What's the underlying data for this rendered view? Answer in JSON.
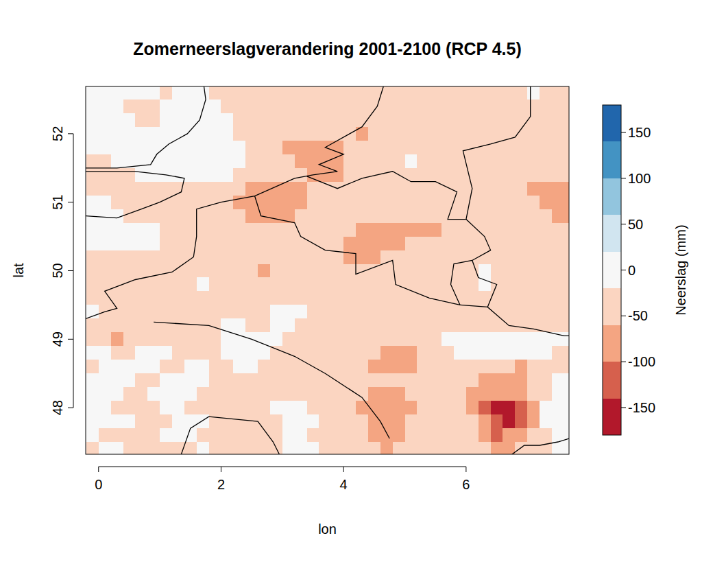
{
  "chart_data": {
    "type": "heatmap",
    "title": "Zomerneerslagverandering 2001-2100 (RCP 4.5)",
    "xlabel": "lon",
    "ylabel": "lat",
    "xlim": [
      -0.21,
      7.68
    ],
    "ylim": [
      47.32,
      52.69
    ],
    "xticks": [
      0,
      2,
      4,
      6
    ],
    "yticks": [
      48,
      49,
      50,
      51,
      52
    ],
    "grid": false,
    "x": [
      -0.1,
      0.1,
      0.3,
      0.5,
      0.7,
      0.9,
      1.1,
      1.3,
      1.5,
      1.7,
      1.9,
      2.1,
      2.3,
      2.5,
      2.7,
      2.9,
      3.1,
      3.3,
      3.5,
      3.7,
      3.9,
      4.1,
      4.3,
      4.5,
      4.7,
      4.9,
      5.1,
      5.3,
      5.5,
      5.7,
      5.9,
      6.1,
      6.3,
      6.5,
      6.7,
      6.9,
      7.1,
      7.3,
      7.5,
      7.7
    ],
    "y": [
      52.6,
      52.4,
      52.2,
      52,
      51.8,
      51.6,
      51.4,
      51.2,
      51,
      50.8,
      50.6,
      50.4,
      50.2,
      50,
      49.8,
      49.6,
      49.4,
      49.2,
      49,
      48.8,
      48.6,
      48.4,
      48.2,
      48,
      47.8,
      47.6,
      47.4
    ],
    "z": [
      [
        0,
        0,
        0,
        0,
        0,
        0,
        -40,
        0,
        0,
        0,
        -40,
        -40,
        -40,
        -40,
        -40,
        -40,
        -40,
        -40,
        -40,
        -40,
        -40,
        -40,
        -40,
        -40,
        -40,
        -40,
        -40,
        -40,
        -40,
        -40,
        -40,
        -40,
        -40,
        -40,
        -40,
        -40,
        0,
        -40,
        -40,
        -40
      ],
      [
        0,
        0,
        0,
        -40,
        -40,
        -40,
        0,
        0,
        0,
        0,
        0,
        -40,
        -40,
        -40,
        -40,
        -40,
        -40,
        -40,
        -40,
        -40,
        -40,
        -40,
        -40,
        -40,
        -40,
        -40,
        -40,
        -40,
        -40,
        -40,
        -40,
        -40,
        -40,
        -40,
        -40,
        -40,
        -40,
        -40,
        -40,
        -40
      ],
      [
        0,
        0,
        0,
        0,
        -40,
        -40,
        0,
        0,
        0,
        0,
        0,
        0,
        -40,
        -40,
        -40,
        -40,
        -40,
        -40,
        -40,
        -40,
        -40,
        -40,
        -40,
        -40,
        -40,
        -40,
        -40,
        -40,
        -40,
        -40,
        -40,
        -40,
        -40,
        -40,
        -40,
        -40,
        -40,
        -40,
        -40,
        -40
      ],
      [
        0,
        0,
        0,
        0,
        0,
        0,
        0,
        0,
        0,
        0,
        0,
        0,
        -40,
        -40,
        -40,
        -40,
        -40,
        -40,
        -40,
        -40,
        -40,
        -40,
        -80,
        -40,
        -40,
        -40,
        -40,
        -40,
        -40,
        -40,
        -40,
        -40,
        -40,
        -40,
        -40,
        -40,
        -40,
        -40,
        -40,
        -40
      ],
      [
        0,
        0,
        0,
        0,
        0,
        0,
        0,
        0,
        0,
        0,
        0,
        0,
        0,
        -40,
        -40,
        -40,
        -80,
        -80,
        -80,
        -80,
        -80,
        -40,
        -40,
        -40,
        -40,
        -40,
        -40,
        -40,
        -40,
        -40,
        -40,
        -40,
        -40,
        -40,
        -40,
        -40,
        -40,
        -40,
        -40,
        -40
      ],
      [
        -40,
        -40,
        0,
        0,
        0,
        0,
        0,
        0,
        0,
        0,
        0,
        0,
        0,
        -40,
        -40,
        -40,
        -40,
        -80,
        -80,
        -80,
        -80,
        -40,
        -40,
        -40,
        -40,
        -40,
        0,
        -40,
        -40,
        -40,
        -40,
        -40,
        -40,
        -40,
        -40,
        -40,
        -40,
        -40,
        -40,
        -40
      ],
      [
        -40,
        -40,
        -40,
        -40,
        0,
        0,
        0,
        0,
        0,
        0,
        0,
        0,
        -40,
        -40,
        -40,
        -40,
        -40,
        -40,
        -80,
        -80,
        -80,
        -40,
        -40,
        -40,
        -40,
        -40,
        -40,
        -40,
        -40,
        -40,
        -40,
        -40,
        -40,
        -40,
        -40,
        -40,
        -40,
        -40,
        -40,
        -40
      ],
      [
        -40,
        -40,
        -40,
        -40,
        -40,
        -40,
        -40,
        -40,
        -40,
        -40,
        -40,
        -40,
        -40,
        -80,
        -80,
        -80,
        -80,
        -80,
        -40,
        -40,
        -40,
        -40,
        -40,
        -40,
        -40,
        -40,
        -40,
        -40,
        -40,
        -40,
        -40,
        -40,
        -40,
        -40,
        -40,
        -40,
        -80,
        -80,
        -80,
        -80
      ],
      [
        0,
        0,
        -40,
        -40,
        -40,
        -40,
        -40,
        -40,
        -40,
        -40,
        -40,
        -40,
        -80,
        -80,
        -80,
        -80,
        -80,
        -80,
        -40,
        -40,
        -40,
        -40,
        -40,
        -40,
        -40,
        -40,
        -40,
        -40,
        -40,
        -40,
        -40,
        -40,
        -40,
        -40,
        -40,
        -40,
        -40,
        -80,
        -80,
        -80
      ],
      [
        0,
        0,
        0,
        -40,
        -40,
        -40,
        -40,
        -40,
        -40,
        -40,
        -40,
        -40,
        -40,
        -80,
        -80,
        -80,
        -80,
        -40,
        -40,
        -40,
        -40,
        -40,
        -40,
        -40,
        -40,
        -40,
        -40,
        -40,
        -40,
        -40,
        -40,
        -40,
        -40,
        -40,
        -40,
        -40,
        -40,
        -40,
        -80,
        -80
      ],
      [
        0,
        0,
        0,
        0,
        0,
        0,
        -40,
        -40,
        -40,
        -40,
        -40,
        -40,
        -40,
        -40,
        -40,
        -40,
        -40,
        -40,
        -40,
        -40,
        -40,
        -40,
        -80,
        -80,
        -80,
        -80,
        -80,
        -80,
        -80,
        -40,
        -40,
        -40,
        -40,
        -40,
        -40,
        -40,
        -40,
        -40,
        -40,
        -40
      ],
      [
        0,
        0,
        0,
        0,
        0,
        0,
        -40,
        -40,
        -40,
        -40,
        -40,
        -40,
        -40,
        -40,
        -40,
        -40,
        -40,
        -40,
        -40,
        -40,
        -40,
        -80,
        -80,
        -80,
        -80,
        -80,
        -40,
        -40,
        -40,
        -40,
        -40,
        -40,
        -40,
        -40,
        -40,
        -40,
        -40,
        -40,
        -40,
        -40
      ],
      [
        -40,
        -40,
        -40,
        -40,
        -40,
        -40,
        -40,
        -40,
        -40,
        -40,
        -40,
        -40,
        -40,
        -40,
        -40,
        -40,
        -40,
        -40,
        -40,
        -40,
        -40,
        -80,
        -80,
        -80,
        -40,
        -40,
        -40,
        -40,
        -40,
        -40,
        -40,
        -40,
        -40,
        -40,
        -40,
        -40,
        -40,
        -40,
        -40,
        -40
      ],
      [
        -40,
        -40,
        -40,
        -40,
        -40,
        -40,
        -40,
        -40,
        -40,
        -40,
        -40,
        -40,
        -40,
        -40,
        -80,
        -40,
        -40,
        -40,
        -40,
        -40,
        -40,
        -40,
        -40,
        -40,
        -40,
        -40,
        -40,
        -40,
        -40,
        -40,
        -40,
        -40,
        0,
        -40,
        -40,
        -40,
        -40,
        -40,
        -40,
        -40
      ],
      [
        -40,
        -40,
        -40,
        -40,
        -40,
        -40,
        -40,
        -40,
        -40,
        0,
        -40,
        -40,
        -40,
        -40,
        -40,
        -40,
        -40,
        -40,
        -40,
        -40,
        -40,
        -40,
        -40,
        -40,
        -40,
        -40,
        -40,
        -40,
        -40,
        -40,
        -40,
        -40,
        0,
        -40,
        -40,
        -40,
        -40,
        -40,
        -40,
        -40
      ],
      [
        -40,
        -40,
        -40,
        -40,
        -40,
        -40,
        -40,
        -40,
        -40,
        -40,
        -40,
        -40,
        -40,
        -40,
        -40,
        -40,
        -40,
        -40,
        -40,
        -40,
        -40,
        -40,
        -40,
        -40,
        -40,
        -40,
        -40,
        -40,
        -40,
        -40,
        -40,
        -40,
        -40,
        -40,
        -40,
        -40,
        -40,
        -40,
        -40,
        -40
      ],
      [
        0,
        -40,
        -40,
        -40,
        -40,
        -40,
        -40,
        -40,
        -40,
        -40,
        -40,
        -40,
        -40,
        -40,
        -40,
        0,
        0,
        0,
        -40,
        -40,
        -40,
        -40,
        -40,
        -40,
        -40,
        -40,
        -40,
        -40,
        -40,
        -40,
        -40,
        -40,
        -40,
        -40,
        -40,
        -40,
        -40,
        -40,
        -40,
        -40
      ],
      [
        -40,
        -40,
        -40,
        -40,
        -40,
        -40,
        -40,
        -40,
        -40,
        -40,
        -40,
        0,
        0,
        -40,
        -40,
        0,
        0,
        -40,
        -40,
        -40,
        -40,
        -40,
        -40,
        -40,
        -40,
        -40,
        -40,
        -40,
        -40,
        -40,
        -40,
        -40,
        -40,
        -40,
        -40,
        -40,
        -40,
        -40,
        -40,
        -40
      ],
      [
        -40,
        -40,
        -80,
        -40,
        -40,
        -40,
        -40,
        -40,
        -40,
        -40,
        -40,
        0,
        0,
        0,
        0,
        0,
        -40,
        -40,
        -40,
        -40,
        -40,
        -40,
        -40,
        -40,
        -40,
        -40,
        -40,
        -40,
        -40,
        0,
        0,
        0,
        0,
        0,
        0,
        0,
        0,
        0,
        0,
        0
      ],
      [
        0,
        0,
        -40,
        -40,
        0,
        0,
        0,
        -40,
        -40,
        -40,
        -40,
        0,
        0,
        0,
        0,
        -40,
        -40,
        -40,
        -40,
        -40,
        -40,
        -40,
        -40,
        -40,
        -80,
        -80,
        -80,
        -40,
        -40,
        -40,
        0,
        0,
        0,
        0,
        0,
        0,
        0,
        0,
        -40,
        -40
      ],
      [
        -40,
        0,
        0,
        0,
        0,
        0,
        -40,
        -40,
        0,
        0,
        -40,
        -40,
        0,
        0,
        -40,
        -40,
        -40,
        -40,
        -40,
        -40,
        -40,
        -40,
        -40,
        -80,
        -80,
        -80,
        -80,
        -40,
        -40,
        -40,
        -40,
        -40,
        -40,
        -40,
        -40,
        -80,
        -40,
        -40,
        -40,
        -40
      ],
      [
        0,
        0,
        0,
        0,
        -40,
        -40,
        0,
        0,
        0,
        0,
        -40,
        -40,
        -40,
        -40,
        -40,
        -40,
        -40,
        -40,
        -40,
        -40,
        -40,
        -40,
        -40,
        -40,
        -40,
        -40,
        -40,
        -40,
        -40,
        -40,
        -40,
        -40,
        -80,
        -80,
        -80,
        -80,
        -40,
        -40,
        0,
        0
      ],
      [
        0,
        0,
        0,
        -40,
        -40,
        0,
        0,
        0,
        0,
        -40,
        -40,
        -40,
        -40,
        -40,
        -40,
        -40,
        -40,
        -40,
        -40,
        -40,
        -40,
        -40,
        -40,
        -80,
        -80,
        -80,
        -40,
        -40,
        -40,
        -40,
        -40,
        -80,
        -80,
        -80,
        -80,
        -80,
        -40,
        -40,
        0,
        0
      ],
      [
        0,
        0,
        -40,
        -40,
        -40,
        -40,
        0,
        0,
        -40,
        -40,
        -40,
        -40,
        -40,
        -40,
        -40,
        0,
        0,
        0,
        -40,
        -40,
        -40,
        -40,
        -80,
        -80,
        -80,
        -80,
        -80,
        -40,
        -40,
        -40,
        -40,
        -80,
        -120,
        -160,
        -160,
        -120,
        -80,
        0,
        0,
        0
      ],
      [
        0,
        0,
        0,
        0,
        -40,
        -40,
        -40,
        0,
        0,
        0,
        -40,
        -40,
        -40,
        -40,
        -40,
        -40,
        0,
        0,
        0,
        -40,
        -40,
        -40,
        -40,
        -80,
        -80,
        -80,
        -40,
        -40,
        -40,
        -40,
        -40,
        -40,
        -80,
        -120,
        -160,
        -120,
        -80,
        0,
        0,
        0
      ],
      [
        0,
        -40,
        -40,
        -40,
        -40,
        -40,
        0,
        0,
        0,
        -40,
        -40,
        -40,
        -40,
        -40,
        -40,
        -40,
        0,
        0,
        -40,
        -40,
        -40,
        -40,
        -40,
        -80,
        -80,
        -80,
        -40,
        -40,
        -40,
        -40,
        -40,
        -40,
        -80,
        -120,
        -80,
        -80,
        -40,
        -40,
        0,
        0
      ],
      [
        -40,
        0,
        0,
        -40,
        -40,
        -40,
        -40,
        -40,
        -40,
        0,
        -40,
        -40,
        -40,
        -40,
        -40,
        -40,
        0,
        0,
        0,
        -40,
        -40,
        -40,
        -40,
        -40,
        -80,
        -40,
        -40,
        -40,
        -40,
        -40,
        -40,
        -40,
        -40,
        -80,
        -80,
        -40,
        -40,
        -40,
        0,
        0
      ]
    ],
    "colorbar": {
      "label": "Neerslag (mm)",
      "lim": [
        -180,
        180
      ],
      "breaks": [
        -180,
        -140,
        -100,
        -60,
        -20,
        20,
        60,
        100,
        140,
        180
      ],
      "colors": [
        "#b2182b",
        "#d6604d",
        "#f4a582",
        "#fbd5c1",
        "#f7f7f7",
        "#d1e5f0",
        "#92c5de",
        "#4393c3",
        "#2166ac"
      ],
      "ticks": [
        150,
        100,
        50,
        0,
        -50,
        -100,
        -150
      ]
    }
  }
}
